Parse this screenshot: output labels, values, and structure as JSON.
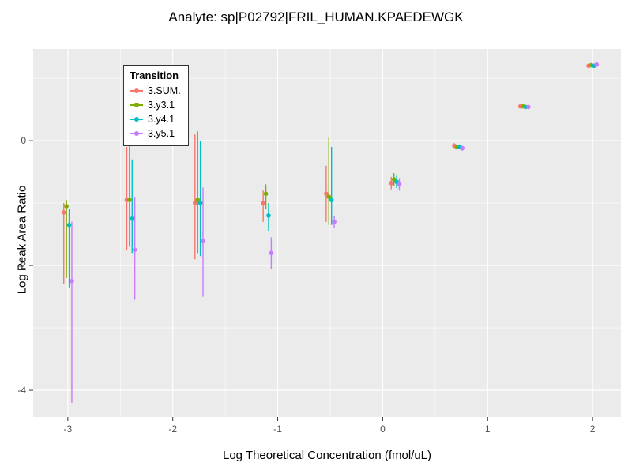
{
  "chart_data": {
    "type": "scatter",
    "title": "Analyte: sp|P02792|FRIL_HUMAN.KPAEDEWGK",
    "xlabel": "Log Theoretical Concentration (fmol/uL)",
    "ylabel": "Log Peak Area Ratio",
    "xlim": [
      -3.33,
      2.27
    ],
    "ylim": [
      -4.43,
      1.47
    ],
    "x_major_ticks": [
      -3,
      -2,
      -1,
      0,
      1,
      2
    ],
    "x_minor_ticks": [
      -2.5,
      -1.5,
      -0.5,
      0.5,
      1.5
    ],
    "y_major_ticks": [
      0,
      -2,
      -4
    ],
    "y_minor_ticks": [
      1,
      -1,
      -3
    ],
    "panel_background": "#EBEBEB",
    "grid_color": "#FFFFFF",
    "tick_label_color": "#4D4D4D",
    "legend": {
      "title": "Transition",
      "position": "top-left-inside"
    },
    "series": [
      {
        "name": "3.SUM.",
        "color": "#F8766D",
        "points": [
          [
            -3.0,
            -1.15,
            -2.3,
            -1.0
          ],
          [
            -2.4,
            -0.95,
            -1.75,
            -0.1
          ],
          [
            -1.75,
            -1.0,
            -1.9,
            0.1
          ],
          [
            -1.1,
            -1.0,
            -1.3,
            -0.8
          ],
          [
            -0.5,
            -0.85,
            -1.3,
            -0.4
          ],
          [
            0.12,
            -0.68,
            -0.78,
            -0.58
          ],
          [
            0.72,
            -0.08,
            -0.12,
            -0.04
          ],
          [
            1.35,
            0.55,
            0.52,
            0.58
          ],
          [
            2.0,
            1.2,
            1.18,
            1.22
          ]
        ]
      },
      {
        "name": "3.y3.1",
        "color": "#7CAE00",
        "points": [
          [
            -3.0,
            -1.05,
            -2.2,
            -0.95
          ],
          [
            -2.4,
            -0.95,
            -1.7,
            0.1
          ],
          [
            -1.75,
            -0.95,
            -1.8,
            0.15
          ],
          [
            -1.1,
            -0.85,
            -1.1,
            -0.7
          ],
          [
            -0.5,
            -0.9,
            -1.35,
            0.05
          ],
          [
            0.12,
            -0.62,
            -0.72,
            -0.52
          ],
          [
            0.72,
            -0.1,
            -0.14,
            -0.06
          ],
          [
            1.35,
            0.55,
            0.52,
            0.58
          ],
          [
            2.0,
            1.21,
            1.19,
            1.23
          ]
        ]
      },
      {
        "name": "3.y4.1",
        "color": "#00BFC4",
        "points": [
          [
            -3.0,
            -1.35,
            -2.35,
            -1.1
          ],
          [
            -2.4,
            -1.25,
            -1.8,
            -0.3
          ],
          [
            -1.75,
            -1.0,
            -1.85,
            0.0
          ],
          [
            -1.1,
            -1.2,
            -1.45,
            -1.0
          ],
          [
            -0.5,
            -0.95,
            -1.35,
            -0.1
          ],
          [
            0.12,
            -0.66,
            -0.76,
            -0.56
          ],
          [
            0.72,
            -0.1,
            -0.14,
            -0.06
          ],
          [
            1.35,
            0.54,
            0.51,
            0.57
          ],
          [
            2.0,
            1.2,
            1.18,
            1.22
          ]
        ]
      },
      {
        "name": "3.y5.1",
        "color": "#C77CFF",
        "points": [
          [
            -3.0,
            -2.25,
            -4.2,
            -1.3
          ],
          [
            -2.4,
            -1.75,
            -2.55,
            -0.9
          ],
          [
            -1.75,
            -1.6,
            -2.5,
            -0.75
          ],
          [
            -1.1,
            -1.8,
            -2.05,
            -1.55
          ],
          [
            -0.5,
            -1.3,
            -1.4,
            -1.2
          ],
          [
            0.12,
            -0.7,
            -0.8,
            -0.6
          ],
          [
            0.72,
            -0.12,
            -0.16,
            -0.08
          ],
          [
            1.35,
            0.54,
            0.51,
            0.57
          ],
          [
            2.0,
            1.22,
            1.2,
            1.24
          ]
        ]
      }
    ]
  }
}
